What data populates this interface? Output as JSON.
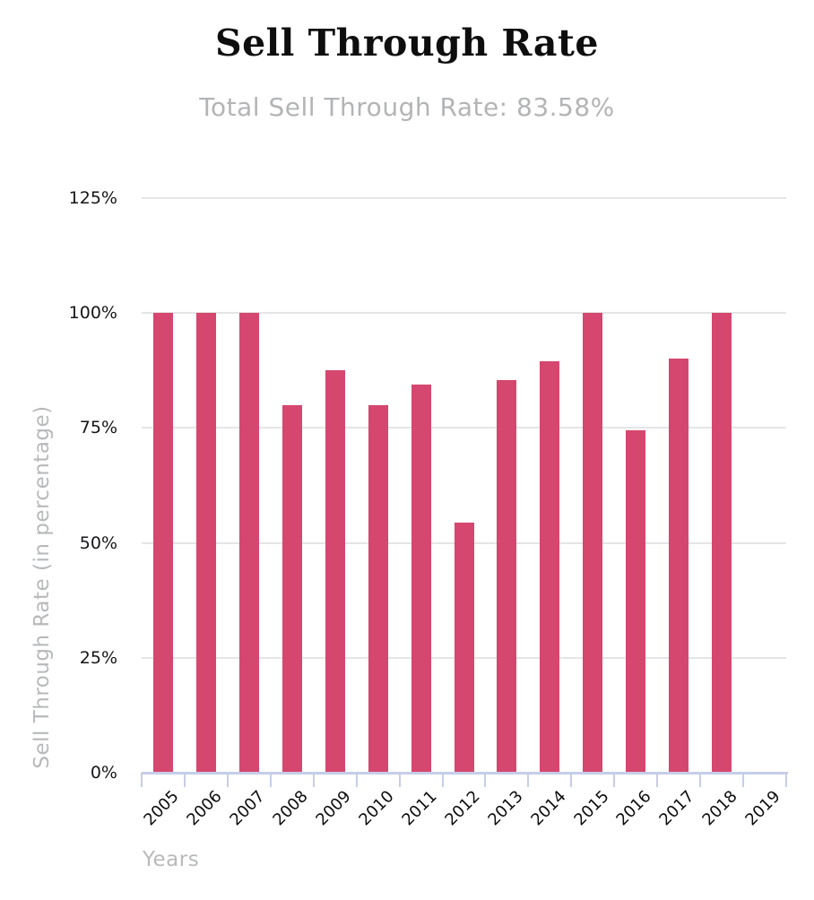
{
  "title": "Sell Through Rate",
  "subtitle": "Total Sell Through Rate: 83.58%",
  "colors": {
    "bar": "#d5476f",
    "gridline": "#e5e5e5",
    "axis": "#c6cde8",
    "muted_text": "#b7b9bb",
    "tick_text": "#16161a"
  },
  "chart_data": {
    "type": "bar",
    "title": "Sell Through Rate",
    "subtitle": "Total Sell Through Rate: 83.58%",
    "categories": [
      "2005",
      "2006",
      "2007",
      "2008",
      "2009",
      "2010",
      "2011",
      "2012",
      "2013",
      "2014",
      "2015",
      "2016",
      "2017",
      "2018",
      "2019"
    ],
    "values": [
      100,
      100,
      100,
      80,
      87.5,
      80,
      84.5,
      54.5,
      85.5,
      89.5,
      100,
      74.5,
      90,
      100,
      0
    ],
    "xlabel": "Years",
    "ylabel": "Sell Through Rate (in percentage)",
    "ylim": [
      0,
      125
    ],
    "ytick_step": 25,
    "ytick_labels": [
      "0%",
      "25%",
      "50%",
      "75%",
      "100%",
      "125%"
    ],
    "grid": true,
    "legend": false
  }
}
